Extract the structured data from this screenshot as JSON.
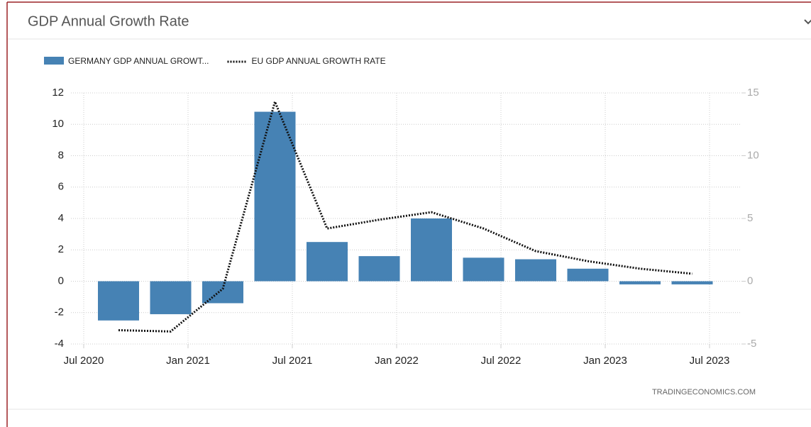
{
  "header": {
    "title": "GDP Annual Growth Rate"
  },
  "chart_data": {
    "type": "bar",
    "x": [
      "2020-09",
      "2020-12",
      "2021-03",
      "2021-06",
      "2021-09",
      "2021-12",
      "2022-03",
      "2022-06",
      "2022-09",
      "2022-12",
      "2023-03",
      "2023-06"
    ],
    "series": [
      {
        "name": "GERMANY GDP ANNUAL GROWT...",
        "type": "bar",
        "color": "#4682b4",
        "values": [
          -2.5,
          -2.1,
          -1.4,
          10.8,
          2.5,
          1.6,
          4.0,
          1.5,
          1.4,
          0.8,
          -0.2,
          -0.2
        ]
      },
      {
        "name": "EU GDP ANNUAL GROWTH RATE",
        "type": "line",
        "axis": "y2",
        "color": "#111111",
        "dash": "dotted",
        "values": [
          -3.9,
          -4.0,
          -0.6,
          14.3,
          4.2,
          4.9,
          5.5,
          4.2,
          2.4,
          1.6,
          1.0,
          0.6
        ]
      }
    ],
    "xlim": [
      "2020-06",
      "2023-08"
    ],
    "xticks": [
      {
        "value": "2020-07",
        "label": "Jul 2020"
      },
      {
        "value": "2021-01",
        "label": "Jan 2021"
      },
      {
        "value": "2021-07",
        "label": "Jul 2021"
      },
      {
        "value": "2022-01",
        "label": "Jan 2022"
      },
      {
        "value": "2022-07",
        "label": "Jul 2022"
      },
      {
        "value": "2023-01",
        "label": "Jan 2023"
      },
      {
        "value": "2023-07",
        "label": "Jul 2023"
      }
    ],
    "ylim": [
      -4,
      12
    ],
    "yticks": [
      -4,
      -2,
      0,
      2,
      4,
      6,
      8,
      10,
      12
    ],
    "y2lim": [
      -5,
      15
    ],
    "y2ticks": [
      -5,
      0,
      5,
      10,
      15
    ],
    "grid": true,
    "legend": "top-left",
    "source": "TRADINGECONOMICS.COM"
  }
}
